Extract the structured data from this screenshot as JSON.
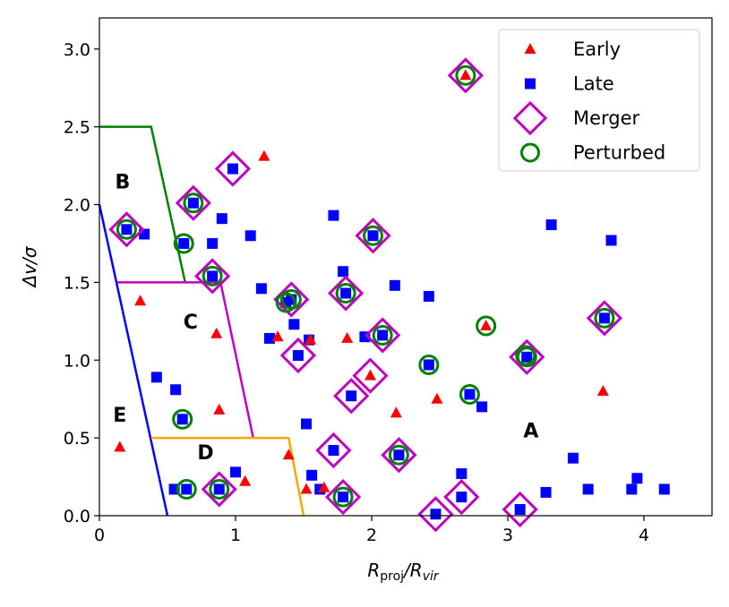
{
  "chart_data": {
    "type": "scatter",
    "xlabel": "R_proj/R_vir",
    "xlabel_main": "R",
    "xlabel_sub1": "proj",
    "xlabel_mid": "/R",
    "xlabel_sub2": "vir",
    "ylabel": "Δv/σ",
    "xlim": [
      0,
      4.5
    ],
    "ylim": [
      0,
      3.2
    ],
    "xticks": [
      0,
      1,
      2,
      3,
      4
    ],
    "xtick_labels": [
      "0",
      "1",
      "2",
      "3",
      "4"
    ],
    "yticks": [
      0,
      0.5,
      1,
      1.5,
      2,
      2.5,
      3
    ],
    "ytick_labels": [
      "0.0",
      "0.5",
      "1.0",
      "1.5",
      "2.0",
      "2.5",
      "3.0"
    ],
    "grid": false,
    "legend_position": "top-right",
    "legend": [
      "Early",
      "Late",
      "Merger",
      "Perturbed"
    ],
    "colors": {
      "early": "#ff0000",
      "late": "#0000ff",
      "merger": "#bf00bf",
      "perturbed": "#008000",
      "region_b": "#008000",
      "region_e": "#0000ff",
      "region_c": "#bf00bf",
      "region_d": "#ffa500"
    },
    "series": [
      {
        "name": "Early",
        "marker": "triangle",
        "points": [
          [
            2.69,
            2.83
          ],
          [
            1.21,
            2.31
          ],
          [
            0.3,
            1.38
          ],
          [
            0.86,
            1.17
          ],
          [
            1.31,
            1.15
          ],
          [
            1.55,
            1.13
          ],
          [
            1.82,
            1.14
          ],
          [
            2.84,
            1.22
          ],
          [
            1.99,
            0.9
          ],
          [
            2.48,
            0.75
          ],
          [
            2.18,
            0.66
          ],
          [
            0.88,
            0.68
          ],
          [
            3.7,
            0.8
          ],
          [
            0.15,
            0.44
          ],
          [
            1.39,
            0.39
          ],
          [
            1.07,
            0.22
          ],
          [
            1.52,
            0.17
          ],
          [
            1.65,
            0.18
          ]
        ]
      },
      {
        "name": "Late",
        "marker": "square",
        "points": [
          [
            0.98,
            2.23
          ],
          [
            0.2,
            1.84
          ],
          [
            0.33,
            1.81
          ],
          [
            0.69,
            2.01
          ],
          [
            0.9,
            1.91
          ],
          [
            1.11,
            1.8
          ],
          [
            0.62,
            1.75
          ],
          [
            0.83,
            1.75
          ],
          [
            0.83,
            1.54
          ],
          [
            1.19,
            1.46
          ],
          [
            1.72,
            1.93
          ],
          [
            1.79,
            1.57
          ],
          [
            2.01,
            1.8
          ],
          [
            2.17,
            1.48
          ],
          [
            2.42,
            1.41
          ],
          [
            3.32,
            1.87
          ],
          [
            3.76,
            1.77
          ],
          [
            1.41,
            1.39
          ],
          [
            1.37,
            1.37
          ],
          [
            1.81,
            1.43
          ],
          [
            1.43,
            1.23
          ],
          [
            1.25,
            1.14
          ],
          [
            1.54,
            1.13
          ],
          [
            1.46,
            1.03
          ],
          [
            2.08,
            1.16
          ],
          [
            1.95,
            1.15
          ],
          [
            2.42,
            0.97
          ],
          [
            3.14,
            1.02
          ],
          [
            3.71,
            1.27
          ],
          [
            2.72,
            0.78
          ],
          [
            2.81,
            0.7
          ],
          [
            1.85,
            0.77
          ],
          [
            0.42,
            0.89
          ],
          [
            0.56,
            0.81
          ],
          [
            0.61,
            0.62
          ],
          [
            1.52,
            0.59
          ],
          [
            1.72,
            0.42
          ],
          [
            2.2,
            0.39
          ],
          [
            0.55,
            0.17
          ],
          [
            0.64,
            0.17
          ],
          [
            0.88,
            0.17
          ],
          [
            1.0,
            0.28
          ],
          [
            1.56,
            0.26
          ],
          [
            1.62,
            0.17
          ],
          [
            1.79,
            0.12
          ],
          [
            2.47,
            0.01
          ],
          [
            2.66,
            0.27
          ],
          [
            2.66,
            0.12
          ],
          [
            3.09,
            0.04
          ],
          [
            3.28,
            0.15
          ],
          [
            3.48,
            0.37
          ],
          [
            3.59,
            0.17
          ],
          [
            3.91,
            0.17
          ],
          [
            3.95,
            0.24
          ],
          [
            4.15,
            0.17
          ]
        ]
      },
      {
        "name": "Merger",
        "marker": "diamond",
        "points": [
          [
            2.69,
            2.83
          ],
          [
            0.98,
            2.23
          ],
          [
            0.2,
            1.84
          ],
          [
            0.69,
            2.01
          ],
          [
            0.83,
            1.54
          ],
          [
            2.01,
            1.8
          ],
          [
            1.41,
            1.39
          ],
          [
            1.81,
            1.43
          ],
          [
            1.46,
            1.03
          ],
          [
            2.08,
            1.16
          ],
          [
            3.14,
            1.02
          ],
          [
            3.71,
            1.27
          ],
          [
            1.99,
            0.9
          ],
          [
            1.85,
            0.77
          ],
          [
            1.72,
            0.42
          ],
          [
            2.2,
            0.39
          ],
          [
            0.88,
            0.17
          ],
          [
            1.79,
            0.12
          ],
          [
            2.47,
            0.01
          ],
          [
            2.66,
            0.12
          ],
          [
            3.09,
            0.04
          ]
        ]
      },
      {
        "name": "Perturbed",
        "marker": "circle",
        "points": [
          [
            2.69,
            2.83
          ],
          [
            0.2,
            1.84
          ],
          [
            0.69,
            2.01
          ],
          [
            0.62,
            1.75
          ],
          [
            0.83,
            1.54
          ],
          [
            2.01,
            1.8
          ],
          [
            1.41,
            1.39
          ],
          [
            1.37,
            1.37
          ],
          [
            1.81,
            1.43
          ],
          [
            2.08,
            1.16
          ],
          [
            2.84,
            1.22
          ],
          [
            2.42,
            0.97
          ],
          [
            3.14,
            1.02
          ],
          [
            3.13,
            1.03
          ],
          [
            3.71,
            1.27
          ],
          [
            2.72,
            0.78
          ],
          [
            0.61,
            0.62
          ],
          [
            2.2,
            0.39
          ],
          [
            0.64,
            0.17
          ],
          [
            0.88,
            0.17
          ],
          [
            1.79,
            0.12
          ]
        ]
      }
    ],
    "regions": [
      {
        "label": "B",
        "color_key": "region_b",
        "line": [
          [
            0,
            2.5
          ],
          [
            0.38,
            2.5
          ],
          [
            0.63,
            1.5
          ]
        ],
        "label_at": [
          0.17,
          2.15
        ]
      },
      {
        "label": "E",
        "color_key": "region_e",
        "line": [
          [
            0,
            2.0
          ],
          [
            0.5,
            0
          ]
        ],
        "label_at": [
          0.15,
          0.65
        ]
      },
      {
        "label": "C",
        "color_key": "region_c",
        "line": [
          [
            0.13,
            1.5
          ],
          [
            0.89,
            1.5
          ],
          [
            1.13,
            0.5
          ]
        ],
        "label_at": [
          0.67,
          1.25
        ]
      },
      {
        "label": "D",
        "color_key": "region_d",
        "line": [
          [
            0.38,
            0.5
          ],
          [
            1.39,
            0.5
          ],
          [
            1.5,
            0
          ]
        ],
        "label_at": [
          0.78,
          0.41
        ]
      },
      {
        "label": "A",
        "color_key": null,
        "line": [],
        "label_at": [
          3.17,
          0.55
        ]
      }
    ]
  }
}
